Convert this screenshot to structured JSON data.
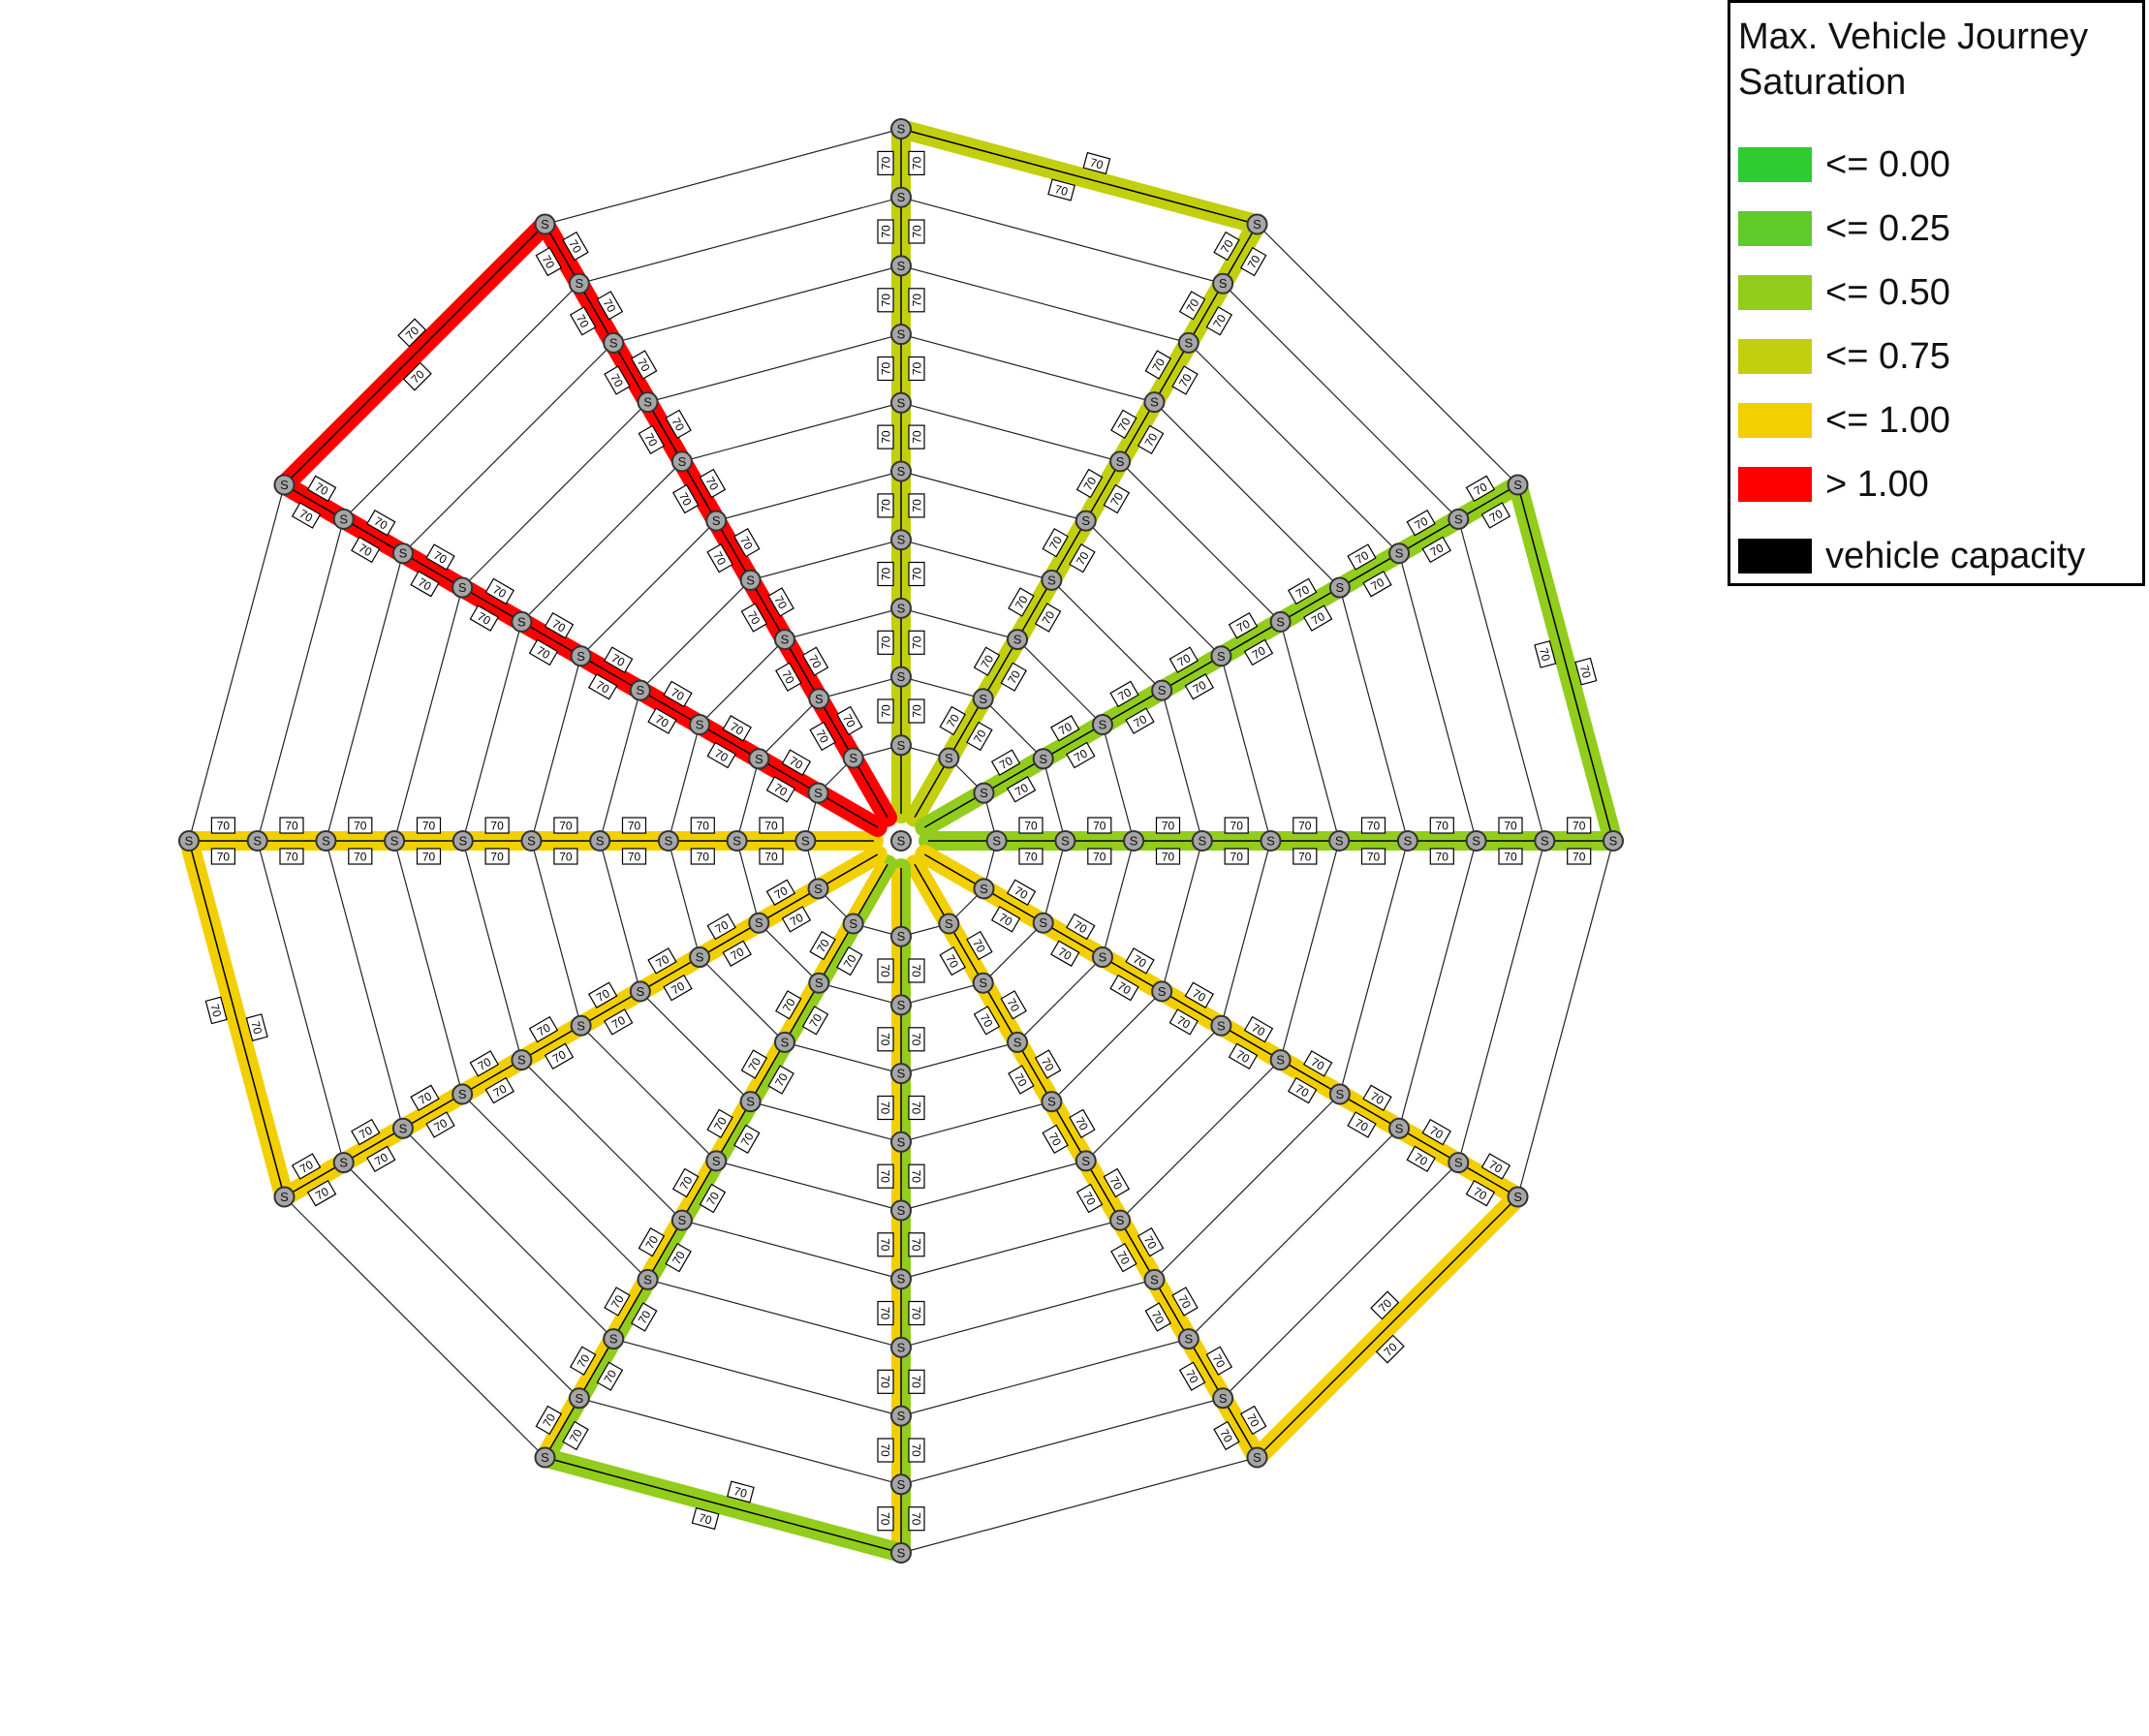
{
  "legend": {
    "title": "Max. Vehicle Journey\nSaturation",
    "items": [
      {
        "label": "<= 0.00",
        "color": "#2ecc31"
      },
      {
        "label": "<= 0.25",
        "color": "#5ecb2a"
      },
      {
        "label": "<= 0.50",
        "color": "#92cc1c"
      },
      {
        "label": "<= 0.75",
        "color": "#c2cf0e"
      },
      {
        "label": "<= 1.00",
        "color": "#f2cf00"
      },
      {
        "label": "> 1.00",
        "color": "#ff0000"
      },
      {
        "label": "vehicle capacity",
        "color": "#000000"
      }
    ]
  },
  "network": {
    "stop_label": "S",
    "capacity_label": "70",
    "spokes": 12,
    "stops_per_spoke": 10,
    "lines": [
      {
        "spokes": [
          0,
          1
        ],
        "saturation": "<= 0.75",
        "color": "#c2cf0e"
      },
      {
        "spokes": [
          2,
          3
        ],
        "saturation": "<= 0.50",
        "color": "#92cc1c"
      },
      {
        "spokes": [
          4,
          5
        ],
        "saturation": "<= 1.00",
        "color": "#f2cf00"
      },
      {
        "spokes": [
          6,
          7
        ],
        "saturation": "<= 0.50",
        "color": "#92cc1c",
        "outbound_color": "#f2cf00"
      },
      {
        "spokes": [
          8,
          9
        ],
        "saturation": "<= 1.00",
        "color": "#f2cf00"
      },
      {
        "spokes": [
          10,
          11
        ],
        "saturation": "> 1.00",
        "color": "#ff0000"
      }
    ],
    "colors": {
      "node_fill": "#a6a6a6",
      "node_stroke": "#333333",
      "grid": "#222222"
    }
  }
}
